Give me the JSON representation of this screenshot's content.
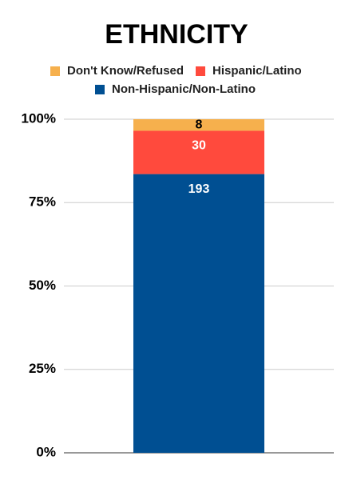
{
  "chart_data": {
    "type": "bar",
    "stack": "percent",
    "title": "ETHNICITY",
    "categories": [
      null
    ],
    "series": [
      {
        "name": "Don't Know/Refused",
        "color": "#f6b04d",
        "label_color": "#000000",
        "values": [
          8
        ]
      },
      {
        "name": "Hispanic/Latino",
        "color": "#ff4a3d",
        "label_color": "#ffffff",
        "values": [
          30
        ]
      },
      {
        "name": "Non-Hispanic/Non-Latino",
        "color": "#004f92",
        "label_color": "#ffffff",
        "values": [
          193
        ]
      }
    ],
    "ylim": [
      0,
      100
    ],
    "yticks": [
      {
        "value": 0,
        "label": "0%"
      },
      {
        "value": 25,
        "label": "25%"
      },
      {
        "value": 50,
        "label": "50%"
      },
      {
        "value": 75,
        "label": "75%"
      },
      {
        "value": 100,
        "label": "100%"
      }
    ],
    "grid": true
  }
}
